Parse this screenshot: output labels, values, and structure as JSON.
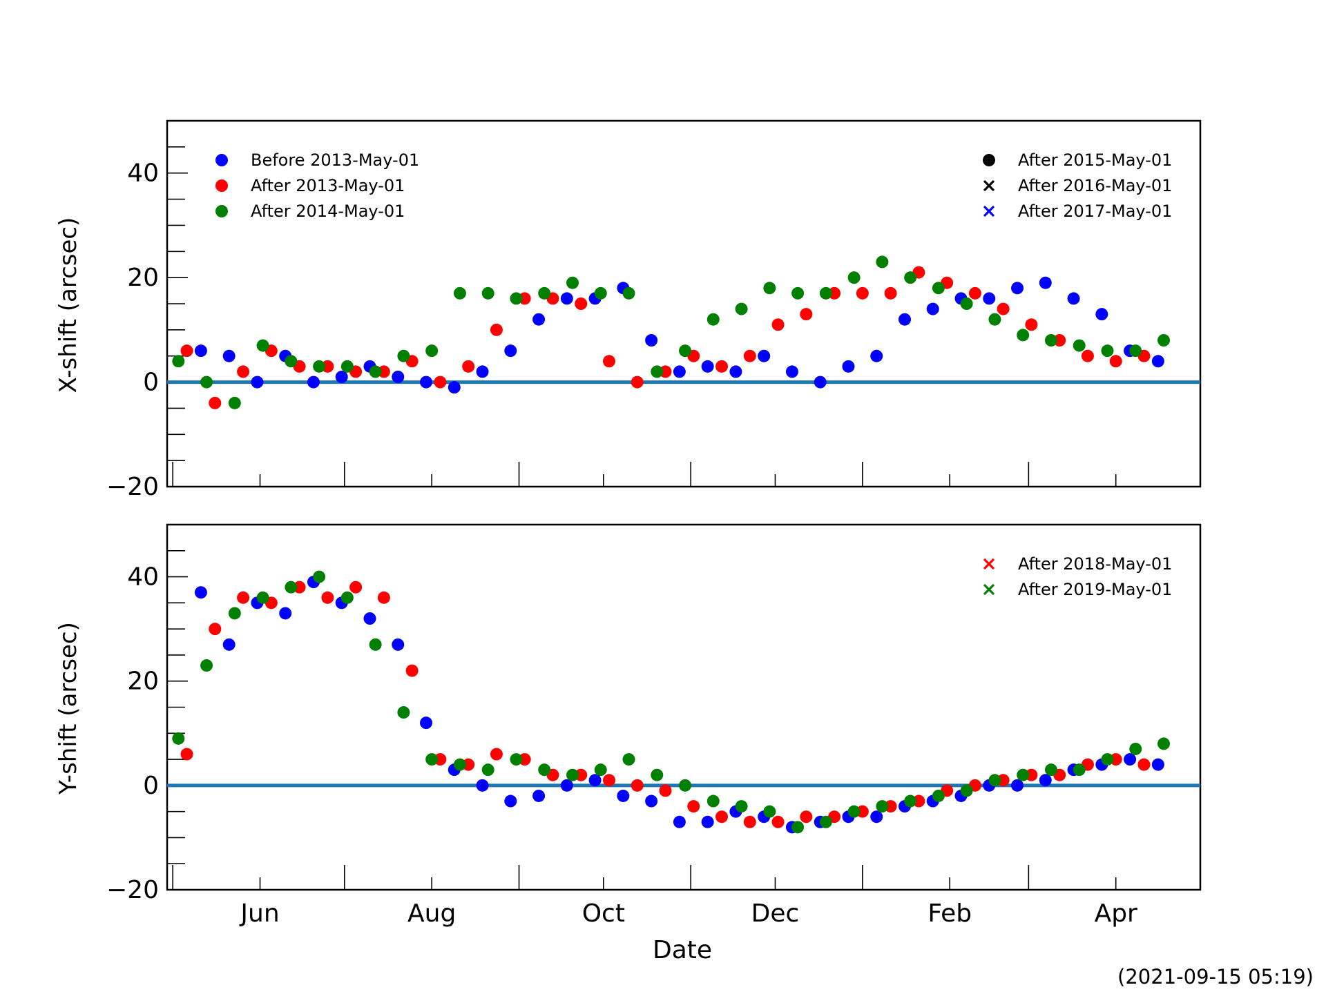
{
  "chart_data": [
    {
      "type": "scatter",
      "ylabel": "X-shift (arcsec)",
      "ylim": [
        -20,
        50
      ],
      "yticks": [
        -20,
        0,
        20,
        40
      ],
      "x_domain_days": [
        -2,
        365
      ],
      "reference_line_y": 0,
      "legend_left": [
        "Before 2013-May-01",
        "After 2013-May-01",
        "After 2014-May-01"
      ],
      "legend_right": [
        "After 2015-May-01",
        "After 2016-May-01",
        "After 2017-May-01"
      ],
      "series": [
        {
          "name": "Before 2013-May-01",
          "marker": "dot",
          "color": "#0000ff",
          "x": [
            10,
            20,
            30,
            40,
            50,
            60,
            70,
            80,
            90,
            100,
            110,
            120,
            130,
            140,
            150,
            160,
            170,
            180,
            190,
            200,
            210,
            220,
            230,
            240,
            250,
            260,
            270,
            280,
            290,
            300,
            310,
            320,
            330,
            340,
            350
          ],
          "y": [
            6,
            5,
            0,
            5,
            0,
            1,
            3,
            1,
            0,
            -1,
            2,
            6,
            12,
            16,
            16,
            18,
            8,
            2,
            3,
            2,
            5,
            2,
            0,
            3,
            5,
            12,
            14,
            16,
            16,
            18,
            19,
            16,
            13,
            6,
            4
          ]
        },
        {
          "name": "After 2013-May-01",
          "marker": "dot",
          "color": "#ff0000",
          "x": [
            5,
            15,
            25,
            35,
            45,
            55,
            65,
            75,
            85,
            95,
            105,
            115,
            125,
            135,
            145,
            155,
            165,
            175,
            185,
            195,
            205,
            215,
            225,
            235,
            245,
            255,
            265,
            275,
            285,
            295,
            305,
            315,
            325,
            335,
            345
          ],
          "y": [
            6,
            -4,
            2,
            6,
            3,
            3,
            2,
            2,
            4,
            0,
            3,
            10,
            16,
            16,
            15,
            4,
            0,
            2,
            5,
            3,
            5,
            11,
            13,
            17,
            17,
            17,
            21,
            19,
            17,
            14,
            11,
            8,
            5,
            4,
            5
          ]
        },
        {
          "name": "After 2014-May-01",
          "marker": "dot",
          "color": "#008000",
          "x": [
            2,
            12,
            22,
            32,
            42,
            52,
            62,
            72,
            82,
            92,
            102,
            112,
            122,
            132,
            142,
            152,
            162,
            172,
            182,
            192,
            202,
            212,
            222,
            232,
            242,
            252,
            262,
            272,
            282,
            292,
            302,
            312,
            322,
            332,
            342,
            352
          ],
          "y": [
            4,
            0,
            -4,
            7,
            4,
            3,
            3,
            2,
            5,
            6,
            17,
            17,
            16,
            17,
            19,
            17,
            17,
            2,
            6,
            12,
            14,
            18,
            17,
            17,
            20,
            23,
            20,
            18,
            15,
            12,
            9,
            8,
            7,
            6,
            6,
            8
          ]
        }
      ]
    },
    {
      "type": "scatter",
      "ylabel": "Y-shift (arcsec)",
      "xlabel": "Date",
      "ylim": [
        -20,
        50
      ],
      "yticks": [
        -20,
        0,
        20,
        40
      ],
      "x_domain_days": [
        -2,
        365
      ],
      "xtick_labels": [
        {
          "label": "Jun",
          "day": 31
        },
        {
          "label": "Aug",
          "day": 92
        },
        {
          "label": "Oct",
          "day": 153
        },
        {
          "label": "Dec",
          "day": 214
        },
        {
          "label": "Feb",
          "day": 276
        },
        {
          "label": "Apr",
          "day": 335
        }
      ],
      "reference_line_y": 0,
      "legend_right": [
        "After 2018-May-01",
        "After 2019-May-01"
      ],
      "series": [
        {
          "name": "Before 2013-May-01",
          "marker": "dot",
          "color": "#0000ff",
          "x": [
            10,
            20,
            30,
            40,
            50,
            60,
            70,
            80,
            90,
            100,
            110,
            120,
            130,
            140,
            150,
            160,
            170,
            180,
            190,
            200,
            210,
            220,
            230,
            240,
            250,
            260,
            270,
            280,
            290,
            300,
            310,
            320,
            330,
            340,
            350
          ],
          "y": [
            37,
            27,
            35,
            33,
            39,
            35,
            32,
            27,
            12,
            3,
            0,
            -3,
            -2,
            0,
            1,
            -2,
            -3,
            -7,
            -7,
            -5,
            -6,
            -8,
            -7,
            -6,
            -6,
            -4,
            -3,
            -2,
            0,
            0,
            1,
            3,
            4,
            5,
            4
          ]
        },
        {
          "name": "After 2013-May-01",
          "marker": "dot",
          "color": "#ff0000",
          "x": [
            5,
            15,
            25,
            35,
            45,
            55,
            65,
            75,
            85,
            95,
            105,
            115,
            125,
            135,
            145,
            155,
            165,
            175,
            185,
            195,
            205,
            215,
            225,
            235,
            245,
            255,
            265,
            275,
            285,
            295,
            305,
            315,
            325,
            335,
            345
          ],
          "y": [
            6,
            30,
            36,
            35,
            38,
            36,
            38,
            36,
            22,
            5,
            4,
            6,
            5,
            2,
            2,
            1,
            0,
            -1,
            -4,
            -6,
            -7,
            -7,
            -6,
            -6,
            -5,
            -4,
            -3,
            -1,
            0,
            1,
            2,
            2,
            4,
            5,
            4
          ]
        },
        {
          "name": "After 2014-May-01",
          "marker": "dot",
          "color": "#008000",
          "x": [
            2,
            12,
            22,
            32,
            42,
            52,
            62,
            72,
            82,
            92,
            102,
            112,
            122,
            132,
            142,
            152,
            162,
            172,
            182,
            192,
            202,
            212,
            222,
            232,
            242,
            252,
            262,
            272,
            282,
            292,
            302,
            312,
            322,
            332,
            342,
            352
          ],
          "y": [
            9,
            23,
            33,
            36,
            38,
            40,
            36,
            27,
            14,
            5,
            4,
            3,
            5,
            3,
            2,
            3,
            5,
            2,
            0,
            -3,
            -4,
            -5,
            -8,
            -7,
            -5,
            -4,
            -3,
            -2,
            -1,
            1,
            2,
            3,
            3,
            5,
            7,
            8
          ]
        }
      ]
    }
  ],
  "timestamp": "(2021-09-15 05:19)"
}
